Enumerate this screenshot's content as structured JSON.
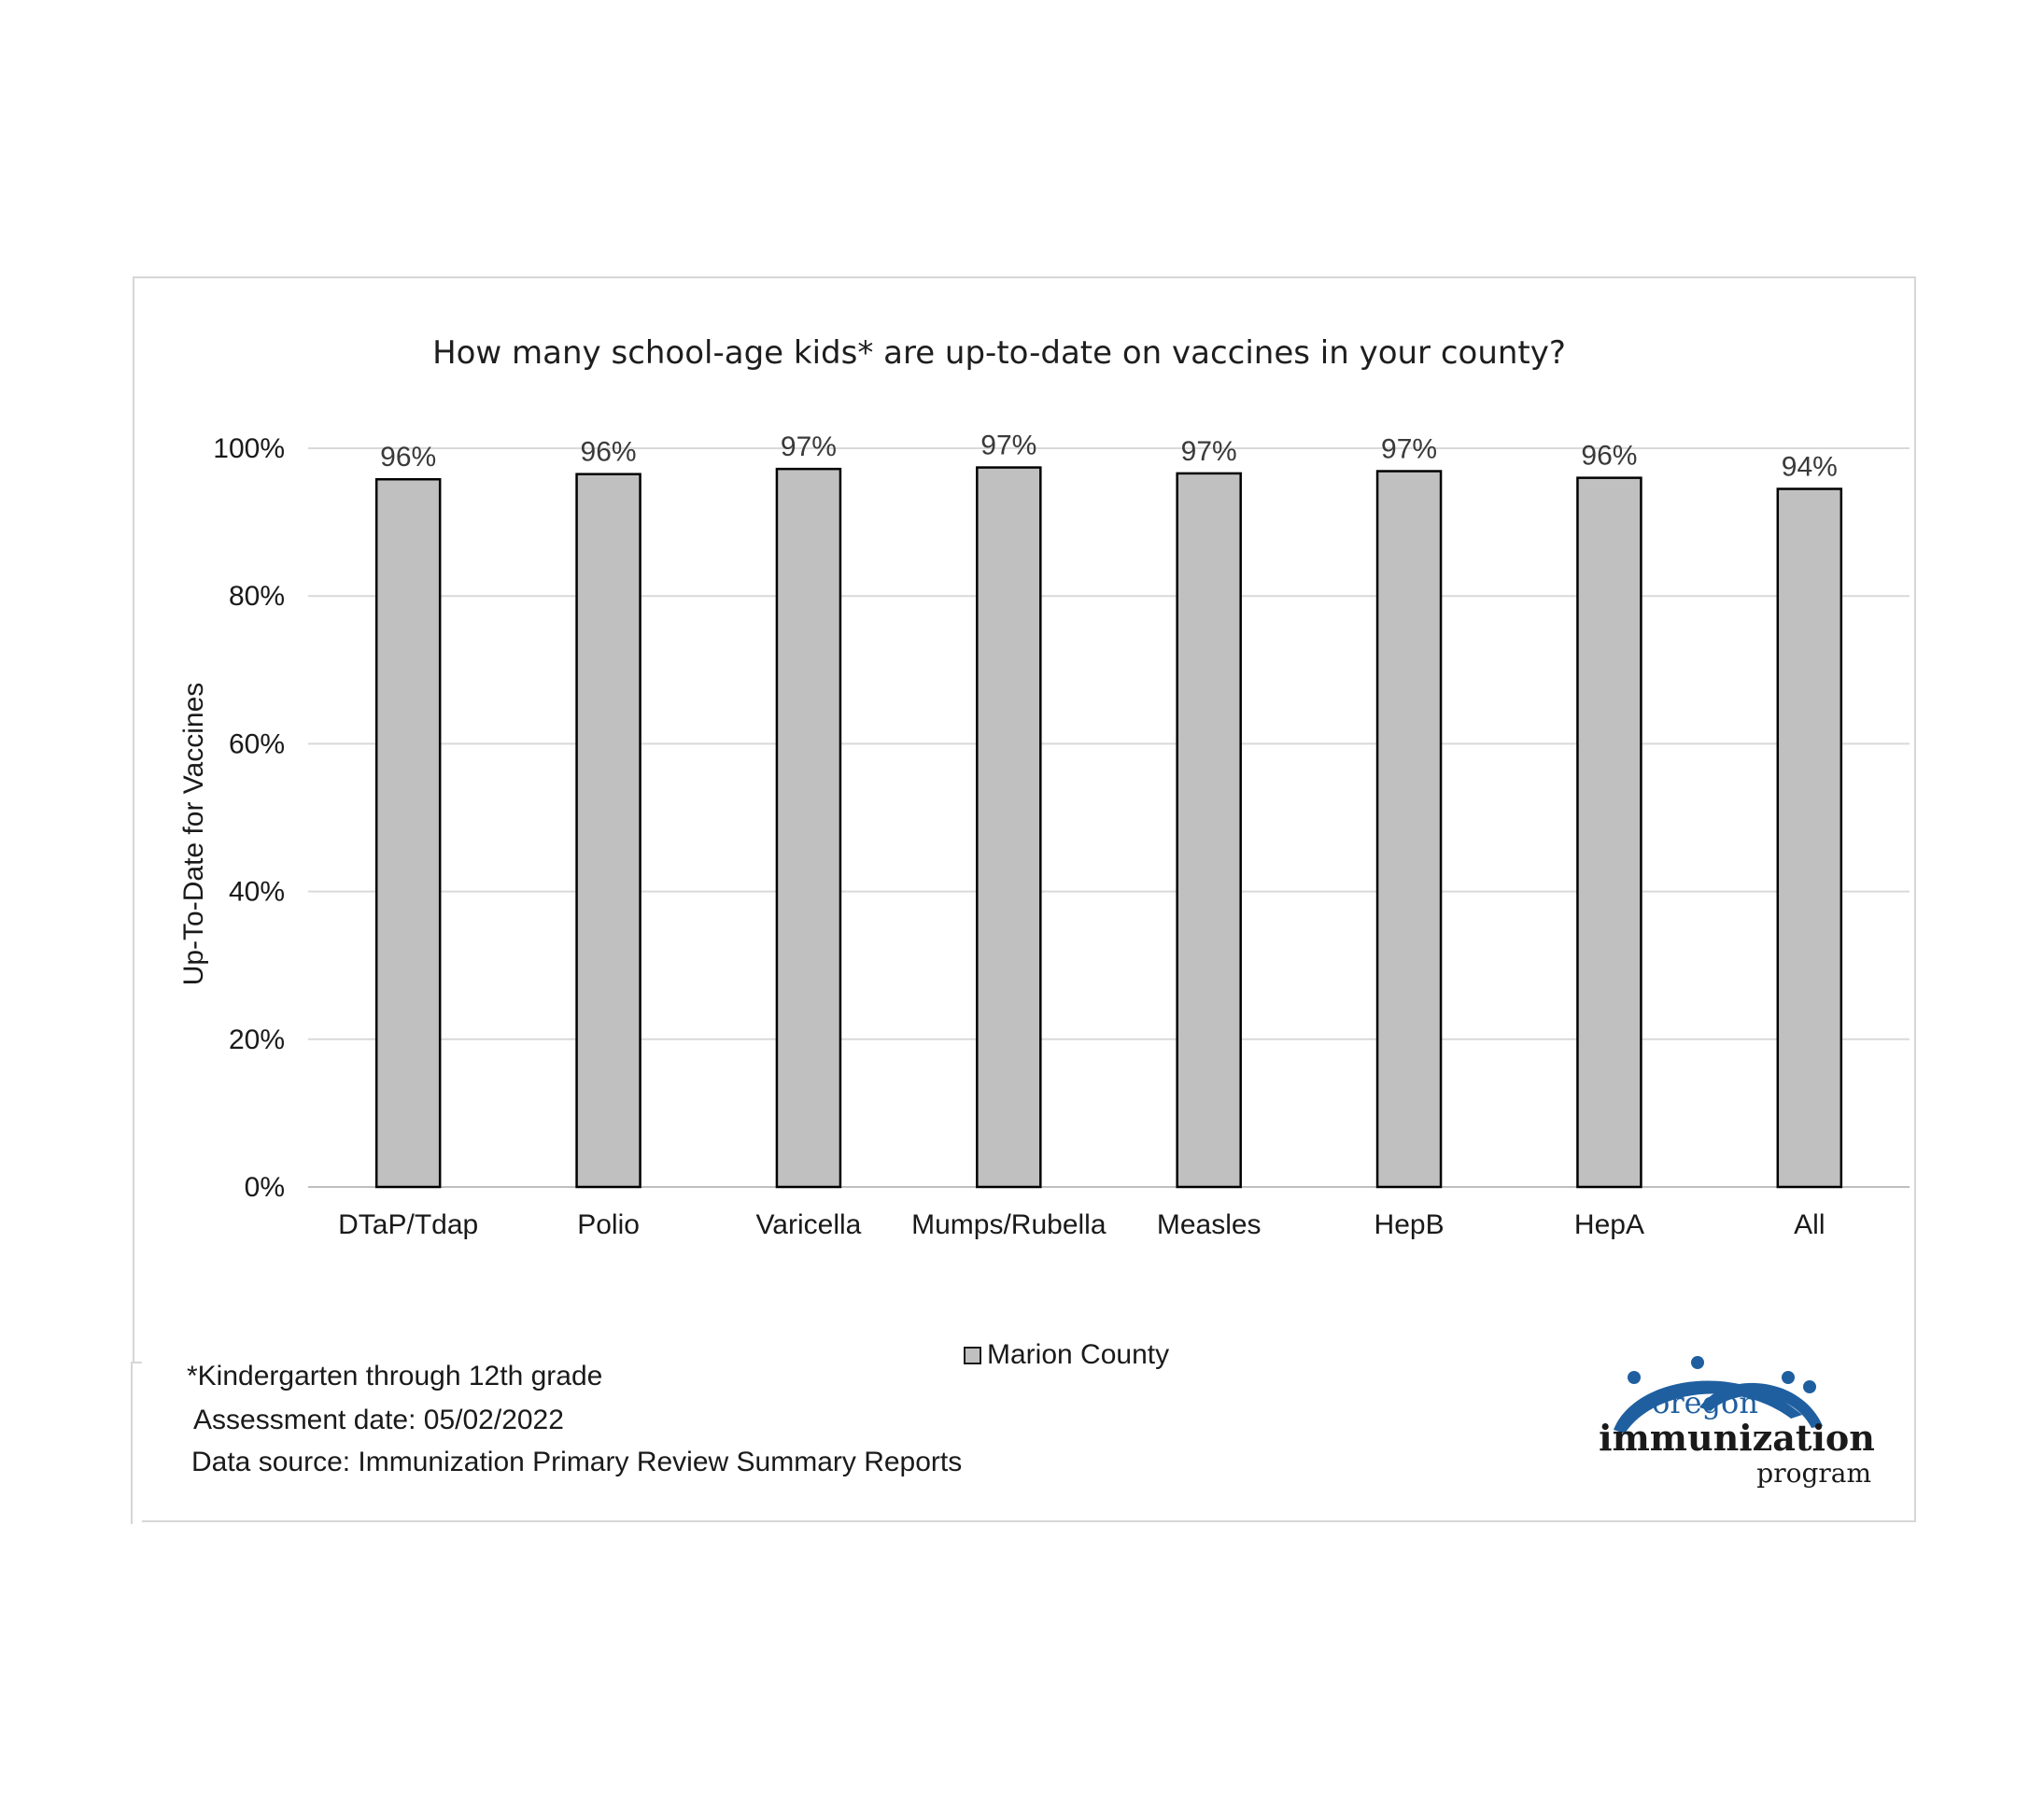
{
  "chart_data": {
    "type": "bar",
    "title": "How many school-age kids* are up-to-date on vaccines in your county?",
    "ylabel": "Up-To-Date for Vaccines",
    "xlabel": "",
    "categories": [
      "DTaP/Tdap",
      "Polio",
      "Varicella",
      "Mumps/Rubella",
      "Measles",
      "HepB",
      "HepA",
      "All"
    ],
    "series": [
      {
        "name": "Marion County",
        "values": [
          95.8,
          96.5,
          97.2,
          97.4,
          96.6,
          96.9,
          96.0,
          94.5
        ],
        "data_labels": [
          "96%",
          "96%",
          "97%",
          "97%",
          "97%",
          "97%",
          "96%",
          "94%"
        ],
        "color": "#c0c0c0"
      }
    ],
    "ylim": [
      0,
      100
    ],
    "yticks": [
      0,
      20,
      40,
      60,
      80,
      100
    ],
    "ytick_labels": [
      "0%",
      "20%",
      "40%",
      "60%",
      "80%",
      "100%"
    ],
    "grid": true,
    "legend_position": "bottom"
  },
  "footnotes": {
    "grade": "*Kindergarten through 12th grade",
    "assessment_date": "Assessment date: 05/02/2022",
    "data_source": "Data source: Immunization Primary Review Summary Reports"
  },
  "logo": {
    "line1": "oregon",
    "line2": "immunization",
    "line3": "program",
    "color": "#1f5fa0",
    "icon": "people-arc-logo"
  },
  "colors": {
    "bar_fill": "#c0c0c0",
    "bar_stroke": "#000000",
    "gridline": "#d9d9d9",
    "frame": "#d6d6d6"
  }
}
